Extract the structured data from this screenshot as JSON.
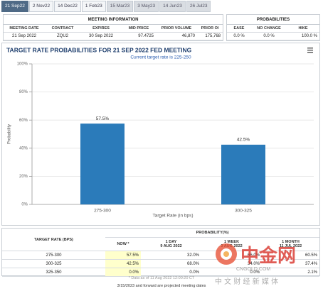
{
  "tabs": [
    "21 Sep22",
    "2 Nov22",
    "14 Dec22",
    "1 Feb23",
    "15 Mar23",
    "3 May23",
    "14 Jun23",
    "26 Jul23"
  ],
  "meeting_info": {
    "title": "MEETING INFORMATION",
    "headers": [
      "MEETING DATE",
      "CONTRACT",
      "EXPIRES",
      "MID PRICE",
      "PRIOR VOLUME",
      "PRIOR OI"
    ],
    "row": [
      "21 Sep 2022",
      "ZQU2",
      "30 Sep 2022",
      "97.4725",
      "46,870",
      "175,768"
    ]
  },
  "probabilities": {
    "title": "PROBABILITIES",
    "headers": [
      "EASE",
      "NO CHANGE",
      "HIKE"
    ],
    "row": [
      "0.0 %",
      "0.0 %",
      "100.0 %"
    ]
  },
  "chart_data": {
    "type": "bar",
    "title": "TARGET RATE PROBABILITIES FOR 21 SEP 2022 FED MEETING",
    "subtitle": "Current target rate is 225-250",
    "x_label": "Target Rate (in bps)",
    "y_label": "Probability",
    "categories": [
      "275-300",
      "300-325"
    ],
    "values": [
      57.5,
      42.5
    ],
    "value_labels": [
      "57.5%",
      "42.5%"
    ],
    "color": "#2b7bba",
    "ylim": [
      0,
      100
    ],
    "yticks": [
      {
        "value": 0,
        "label": "0%"
      },
      {
        "value": 20,
        "label": "20%"
      },
      {
        "value": 40,
        "label": "40%"
      },
      {
        "value": 60,
        "label": "60%"
      },
      {
        "value": 80,
        "label": "80%"
      },
      {
        "value": 100,
        "label": "100%"
      }
    ],
    "grid": true
  },
  "rate_table": {
    "header": "TARGET RATE (BPS)",
    "group_header": "PROBABILITY(%)",
    "columns": [
      {
        "name": "NOW *"
      },
      {
        "name": "1 DAY",
        "date": "9 AUG 2022"
      },
      {
        "name": "1 WEEK",
        "date": "3 AUG 2022"
      },
      {
        "name": "1 MONTH",
        "date": "11 JUL 2022"
      }
    ],
    "rows": [
      [
        "275-300",
        "57.5%",
        "32.0%",
        "66.0%",
        "60.5%"
      ],
      [
        "300-325",
        "42.5%",
        "68.0%",
        "34.0%",
        "37.4%"
      ],
      [
        "325-350",
        "0.0%",
        "0.0%",
        "0.0%",
        "2.1%"
      ]
    ]
  },
  "footnote": "* Data as of 11 Aug 2022 12:00:20 CT",
  "note": "3/15/2023 and forward are projected meeting dates",
  "watermark": {
    "brand": "中金网",
    "site": "CNGOLD.COM",
    "slogan": "中 文 财 经 新 媒 体"
  }
}
